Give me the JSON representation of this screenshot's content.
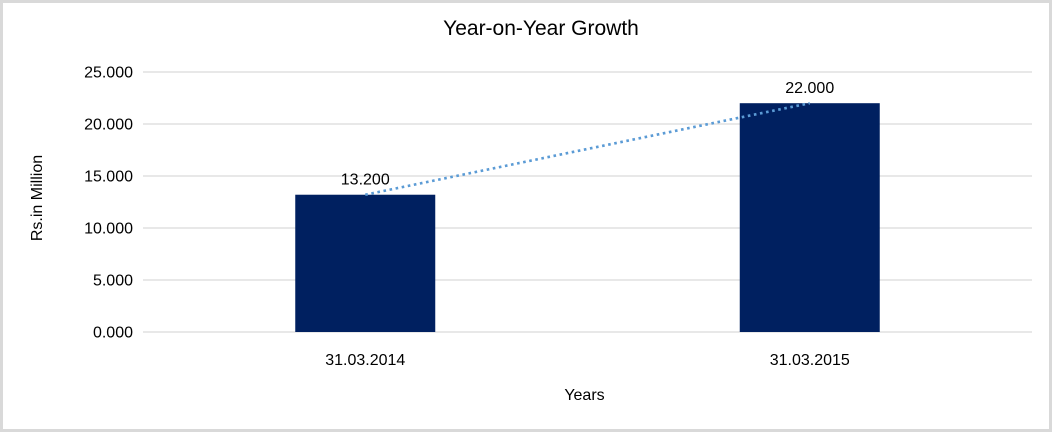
{
  "chart_data": {
    "type": "bar",
    "title": "Year-on-Year Growth",
    "xlabel": "Years",
    "ylabel": "Rs.in Million",
    "categories": [
      "31.03.2014",
      "31.03.2015"
    ],
    "values": [
      13200,
      22000
    ],
    "value_labels": [
      "13.200",
      "22.000"
    ],
    "ylim": [
      0,
      25000
    ],
    "yticks": [
      {
        "value": 0,
        "label": "0.000"
      },
      {
        "value": 5000,
        "label": "5.000"
      },
      {
        "value": 10000,
        "label": "10.000"
      },
      {
        "value": 15000,
        "label": "15.000"
      },
      {
        "value": 20000,
        "label": "20.000"
      },
      {
        "value": 25000,
        "label": "25.000"
      }
    ],
    "grid": "horizontal",
    "legend": "none",
    "bar_color": "#002060",
    "trendline": {
      "style": "dotted",
      "color": "#5B9BD5",
      "from_value": 13200,
      "to_value": 22000
    }
  },
  "colors": {
    "gridline": "#d9d9d9",
    "frame_border": "#d9d9d9",
    "left_accent": "#17375d",
    "text": "#000000",
    "background": "#ffffff"
  }
}
